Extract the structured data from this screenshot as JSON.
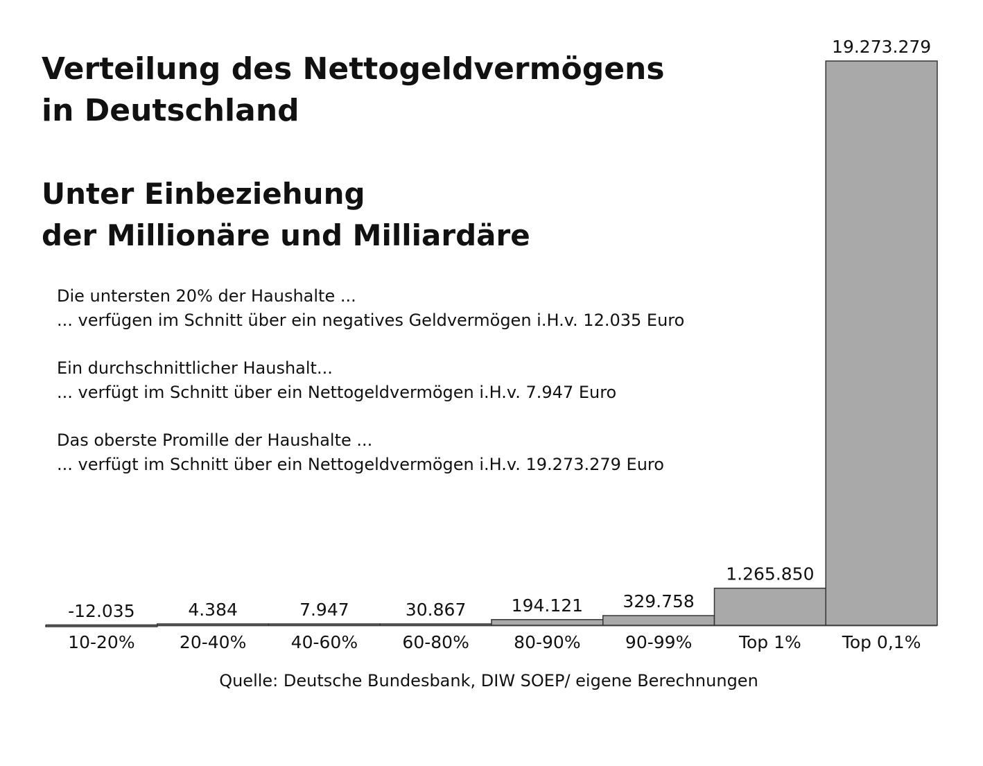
{
  "title_lines": [
    "Verteilung des Nettogeldvermögens",
    "in Deutschland"
  ],
  "subtitle_lines": [
    "Unter Einbeziehung",
    "der Millionäre und Milliardäre"
  ],
  "notes": [
    {
      "line1": "Die untersten 20% der Haushalte ...",
      "line2": "... verfügen im Schnitt über ein negatives Geldvermögen i.H.v. 12.035 Euro"
    },
    {
      "line1": "Ein durchschnittlicher Haushalt...",
      "line2": "... verfügt im Schnitt über ein Nettogeldvermögen i.H.v. 7.947 Euro"
    },
    {
      "line1": "Das oberste Promille der Haushalte ...",
      "line2": "... verfügt im Schnitt über ein Nettogeldvermögen i.H.v. 19.273.279 Euro"
    }
  ],
  "source": "Quelle: Deutsche Bundesbank, DIW SOEP/ eigene Berechnungen",
  "chart_data": {
    "type": "bar",
    "title": "Verteilung des Nettogeldvermögens in Deutschland",
    "subtitle": "Unter Einbeziehung der Millionäre und Milliardäre",
    "categories": [
      "10-20%",
      "20-40%",
      "40-60%",
      "60-80%",
      "80-90%",
      "90-99%",
      "Top 1%",
      "Top 0,1%"
    ],
    "values": [
      -12035,
      4384,
      7947,
      30867,
      194121,
      329758,
      1265850,
      19273279
    ],
    "value_labels": [
      "-12.035",
      "4.384",
      "7.947",
      "30.867",
      "194.121",
      "329.758",
      "1.265.850",
      "19.273.279"
    ],
    "xlabel": "",
    "ylabel": "",
    "ylim": [
      -12035,
      19273279
    ],
    "grid": false,
    "bar_color": "#a9a9a9"
  }
}
